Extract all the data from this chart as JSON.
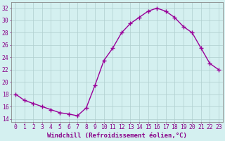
{
  "x": [
    0,
    1,
    2,
    3,
    4,
    5,
    6,
    7,
    8,
    9,
    10,
    11,
    12,
    13,
    14,
    15,
    16,
    17,
    18,
    19,
    20,
    21,
    22,
    23
  ],
  "y": [
    18,
    17,
    16.5,
    16,
    15.5,
    15,
    14.8,
    14.5,
    15.8,
    19.5,
    23.5,
    25.5,
    28,
    29.5,
    30.5,
    31.5,
    32,
    31.5,
    30.5,
    29,
    28,
    25.5,
    23,
    22
  ],
  "line_color": "#990099",
  "marker": "P",
  "marker_size": 2.5,
  "bg_color": "#d4f0f0",
  "grid_color": "#b0cece",
  "xlabel": "Windchill (Refroidissement éolien,°C)",
  "xlabel_fontsize": 6.5,
  "ylim": [
    13.5,
    33
  ],
  "xlim": [
    -0.5,
    23.5
  ],
  "yticks": [
    14,
    16,
    18,
    20,
    22,
    24,
    26,
    28,
    30,
    32
  ],
  "xticks": [
    0,
    1,
    2,
    3,
    4,
    5,
    6,
    7,
    8,
    9,
    10,
    11,
    12,
    13,
    14,
    15,
    16,
    17,
    18,
    19,
    20,
    21,
    22,
    23
  ],
  "tick_color": "#880088",
  "tick_fontsize": 5.8,
  "spine_color": "#888888",
  "linewidth": 1.0
}
